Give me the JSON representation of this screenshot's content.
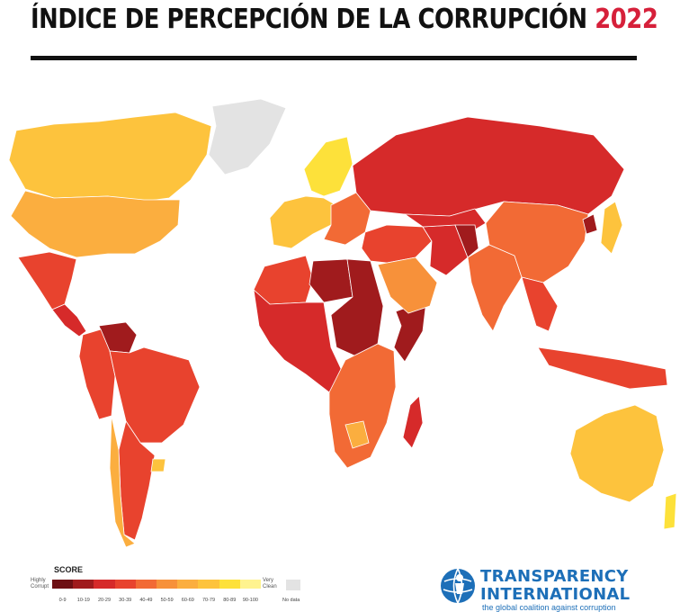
{
  "header": {
    "title": "ÍNDICE DE PERCEPCIÓN DE LA CORRUPCIÓN",
    "year": "2022",
    "year_color": "#d6203a"
  },
  "map": {
    "regions": [
      {
        "name": "Canada",
        "band": 7
      },
      {
        "name": "United States",
        "band": 6
      },
      {
        "name": "Mexico",
        "band": 3
      },
      {
        "name": "Central America",
        "band": 2
      },
      {
        "name": "Venezuela",
        "band": 1
      },
      {
        "name": "Brazil",
        "band": 3
      },
      {
        "name": "Andes",
        "band": 3
      },
      {
        "name": "Argentina",
        "band": 3
      },
      {
        "name": "Chile",
        "band": 6
      },
      {
        "name": "Uruguay",
        "band": 7
      },
      {
        "name": "Greenland",
        "band": -1
      },
      {
        "name": "Nordic countries",
        "band": 8
      },
      {
        "name": "Western Europe",
        "band": 7
      },
      {
        "name": "Eastern Europe",
        "band": 4
      },
      {
        "name": "Russia",
        "band": 2
      },
      {
        "name": "North Africa",
        "band": 3
      },
      {
        "name": "Libya",
        "band": 1
      },
      {
        "name": "Sahel & Central Africa",
        "band": 2
      },
      {
        "name": "Sudan & South Sudan",
        "band": 1
      },
      {
        "name": "Somalia",
        "band": 1
      },
      {
        "name": "Southern Africa",
        "band": 4
      },
      {
        "name": "Botswana",
        "band": 6
      },
      {
        "name": "Madagascar",
        "band": 2
      },
      {
        "name": "Middle East",
        "band": 3
      },
      {
        "name": "Arabian Peninsula",
        "band": 5
      },
      {
        "name": "Iran",
        "band": 2
      },
      {
        "name": "Central Asia",
        "band": 2
      },
      {
        "name": "Afghanistan",
        "band": 1
      },
      {
        "name": "India",
        "band": 4
      },
      {
        "name": "China",
        "band": 4
      },
      {
        "name": "North Korea",
        "band": 1
      },
      {
        "name": "Japan",
        "band": 7
      },
      {
        "name": "Southeast Asia",
        "band": 3
      },
      {
        "name": "Indonesia & PNG",
        "band": 3
      },
      {
        "name": "Australia",
        "band": 7
      },
      {
        "name": "New Zealand",
        "band": 8
      }
    ]
  },
  "legend": {
    "title": "SCORE",
    "low_label": "Highly Corrupt",
    "high_label": "Very Clean",
    "no_data_label": "No data",
    "no_data_color": "#e3e3e3",
    "bands": [
      {
        "label": "0-9",
        "color": "#6e1014"
      },
      {
        "label": "10-19",
        "color": "#a01b1d"
      },
      {
        "label": "20-29",
        "color": "#d62a2a"
      },
      {
        "label": "30-39",
        "color": "#e8432e"
      },
      {
        "label": "40-49",
        "color": "#f26a35"
      },
      {
        "label": "50-59",
        "color": "#f7913a"
      },
      {
        "label": "60-69",
        "color": "#fbae3f"
      },
      {
        "label": "70-79",
        "color": "#fdc33d"
      },
      {
        "label": "80-89",
        "color": "#fde13a"
      },
      {
        "label": "90-100",
        "color": "#fff38f"
      }
    ]
  },
  "logo": {
    "line1": "TRANSPARENCY",
    "line2": "INTERNATIONAL",
    "tagline": "the global coalition against corruption",
    "icon": "globe-person-icon",
    "color": "#1d6fb8"
  }
}
